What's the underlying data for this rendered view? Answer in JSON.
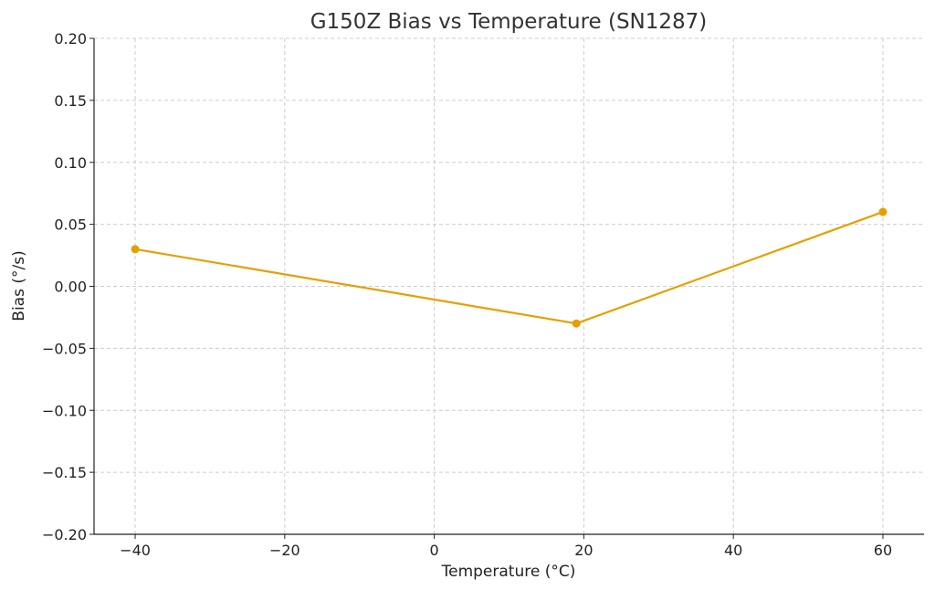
{
  "chart_data": {
    "type": "line",
    "title": "G150Z Bias vs Temperature (SN1287)",
    "xlabel": "Temperature (°C)",
    "ylabel": "Bias (°/s)",
    "xlim": [
      -45.5,
      65.5
    ],
    "ylim": [
      -0.2,
      0.2
    ],
    "xticks": [
      -40,
      -20,
      0,
      20,
      40,
      60
    ],
    "xtick_labels": [
      "−40",
      "−20",
      "0",
      "20",
      "40",
      "60"
    ],
    "yticks": [
      0.2,
      0.15,
      0.1,
      0.05,
      0.0,
      -0.05,
      -0.1,
      -0.15,
      -0.2
    ],
    "ytick_labels": [
      "0.20",
      "0.15",
      "0.10",
      "0.05",
      "0.00",
      "−0.05",
      "−0.10",
      "−0.15",
      "−0.20"
    ],
    "grid": true,
    "series": [
      {
        "color": "#E69F00",
        "x": [
          -40,
          19,
          60
        ],
        "y": [
          0.03,
          -0.03,
          0.06
        ]
      }
    ]
  }
}
